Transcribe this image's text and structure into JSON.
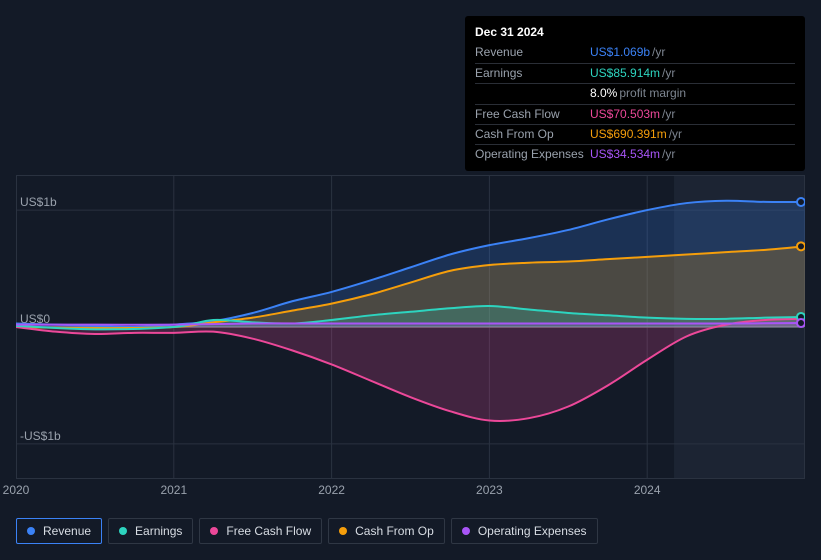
{
  "colors": {
    "bg": "#131a27",
    "panel": "#000000",
    "grid": "#2a3240",
    "grid_bold": "#6d7581",
    "tick": "#9aa2ad",
    "shade": "#1c2433",
    "revenue": "#3b82f6",
    "earnings": "#2dd4bf",
    "fcf": "#ec4899",
    "cashop": "#f59e0b",
    "opex": "#a855f7"
  },
  "chart": {
    "type": "area",
    "x_domain": [
      2020,
      2025
    ],
    "y_domain": [
      -1.3,
      1.3
    ],
    "x_ticks": [
      2020,
      2021,
      2022,
      2023,
      2024
    ],
    "y_ticks": [
      {
        "v": 1.0,
        "label": "US$1b"
      },
      {
        "v": 0.0,
        "label": "US$0"
      },
      {
        "v": -1.0,
        "label": "-US$1b"
      }
    ],
    "shade_from_x": 2024.17,
    "cursor_x": 2025.0,
    "series": [
      {
        "key": "revenue",
        "label": "Revenue",
        "points": [
          [
            2020,
            0.03
          ],
          [
            2020.25,
            0.02
          ],
          [
            2020.5,
            0.01
          ],
          [
            2020.75,
            0.0
          ],
          [
            2021,
            0.02
          ],
          [
            2021.25,
            0.05
          ],
          [
            2021.5,
            0.12
          ],
          [
            2021.75,
            0.22
          ],
          [
            2022,
            0.3
          ],
          [
            2022.25,
            0.4
          ],
          [
            2022.5,
            0.51
          ],
          [
            2022.75,
            0.62
          ],
          [
            2023,
            0.7
          ],
          [
            2023.25,
            0.76
          ],
          [
            2023.5,
            0.83
          ],
          [
            2023.75,
            0.92
          ],
          [
            2024,
            1.0
          ],
          [
            2024.25,
            1.06
          ],
          [
            2024.5,
            1.08
          ],
          [
            2024.75,
            1.07
          ],
          [
            2025,
            1.069
          ]
        ]
      },
      {
        "key": "cashop",
        "label": "Cash From Op",
        "points": [
          [
            2020,
            0.0
          ],
          [
            2020.5,
            -0.01
          ],
          [
            2021,
            0.0
          ],
          [
            2021.25,
            0.04
          ],
          [
            2021.5,
            0.08
          ],
          [
            2021.75,
            0.14
          ],
          [
            2022,
            0.2
          ],
          [
            2022.25,
            0.28
          ],
          [
            2022.5,
            0.38
          ],
          [
            2022.75,
            0.48
          ],
          [
            2023,
            0.53
          ],
          [
            2023.25,
            0.55
          ],
          [
            2023.5,
            0.56
          ],
          [
            2023.75,
            0.58
          ],
          [
            2024,
            0.6
          ],
          [
            2024.25,
            0.62
          ],
          [
            2024.5,
            0.64
          ],
          [
            2024.75,
            0.66
          ],
          [
            2025,
            0.69
          ]
        ]
      },
      {
        "key": "earnings",
        "label": "Earnings",
        "points": [
          [
            2020,
            0.01
          ],
          [
            2020.5,
            -0.02
          ],
          [
            2021,
            0.0
          ],
          [
            2021.25,
            0.06
          ],
          [
            2021.5,
            0.04
          ],
          [
            2021.75,
            0.03
          ],
          [
            2022,
            0.06
          ],
          [
            2022.25,
            0.1
          ],
          [
            2022.5,
            0.13
          ],
          [
            2022.75,
            0.16
          ],
          [
            2023,
            0.18
          ],
          [
            2023.25,
            0.15
          ],
          [
            2023.5,
            0.12
          ],
          [
            2023.75,
            0.1
          ],
          [
            2024,
            0.08
          ],
          [
            2024.25,
            0.07
          ],
          [
            2024.5,
            0.07
          ],
          [
            2024.75,
            0.08
          ],
          [
            2025,
            0.086
          ]
        ]
      },
      {
        "key": "fcf",
        "label": "Free Cash Flow",
        "points": [
          [
            2020,
            0.0
          ],
          [
            2020.25,
            -0.04
          ],
          [
            2020.5,
            -0.06
          ],
          [
            2020.75,
            -0.05
          ],
          [
            2021,
            -0.05
          ],
          [
            2021.25,
            -0.04
          ],
          [
            2021.5,
            -0.1
          ],
          [
            2021.75,
            -0.2
          ],
          [
            2022,
            -0.32
          ],
          [
            2022.25,
            -0.46
          ],
          [
            2022.5,
            -0.6
          ],
          [
            2022.75,
            -0.72
          ],
          [
            2023,
            -0.8
          ],
          [
            2023.25,
            -0.78
          ],
          [
            2023.5,
            -0.68
          ],
          [
            2023.75,
            -0.5
          ],
          [
            2024,
            -0.28
          ],
          [
            2024.25,
            -0.08
          ],
          [
            2024.5,
            0.02
          ],
          [
            2024.75,
            0.06
          ],
          [
            2025,
            0.0705
          ]
        ]
      },
      {
        "key": "opex",
        "label": "Operating Expenses",
        "points": [
          [
            2020,
            0.02
          ],
          [
            2020.5,
            0.02
          ],
          [
            2021,
            0.02
          ],
          [
            2021.5,
            0.03
          ],
          [
            2022,
            0.03
          ],
          [
            2022.5,
            0.03
          ],
          [
            2023,
            0.03
          ],
          [
            2023.5,
            0.03
          ],
          [
            2024,
            0.03
          ],
          [
            2024.5,
            0.03
          ],
          [
            2025,
            0.0345
          ]
        ]
      }
    ]
  },
  "tooltip": {
    "date": "Dec 31 2024",
    "rows": [
      {
        "label": "Revenue",
        "value": "US$1.069b",
        "color_key": "revenue",
        "unit": "/yr"
      },
      {
        "label": "Earnings",
        "value": "US$85.914m",
        "color_key": "earnings",
        "unit": "/yr"
      },
      {
        "label": "",
        "value": "8.0%",
        "color_key": null,
        "unit": "profit margin"
      },
      {
        "label": "Free Cash Flow",
        "value": "US$70.503m",
        "color_key": "fcf",
        "unit": "/yr"
      },
      {
        "label": "Cash From Op",
        "value": "US$690.391m",
        "color_key": "cashop",
        "unit": "/yr"
      },
      {
        "label": "Operating Expenses",
        "value": "US$34.534m",
        "color_key": "opex",
        "unit": "/yr"
      }
    ]
  },
  "legend": {
    "active_key": "revenue",
    "items": [
      {
        "key": "revenue",
        "label": "Revenue"
      },
      {
        "key": "earnings",
        "label": "Earnings"
      },
      {
        "key": "fcf",
        "label": "Free Cash Flow"
      },
      {
        "key": "cashop",
        "label": "Cash From Op"
      },
      {
        "key": "opex",
        "label": "Operating Expenses"
      }
    ]
  }
}
